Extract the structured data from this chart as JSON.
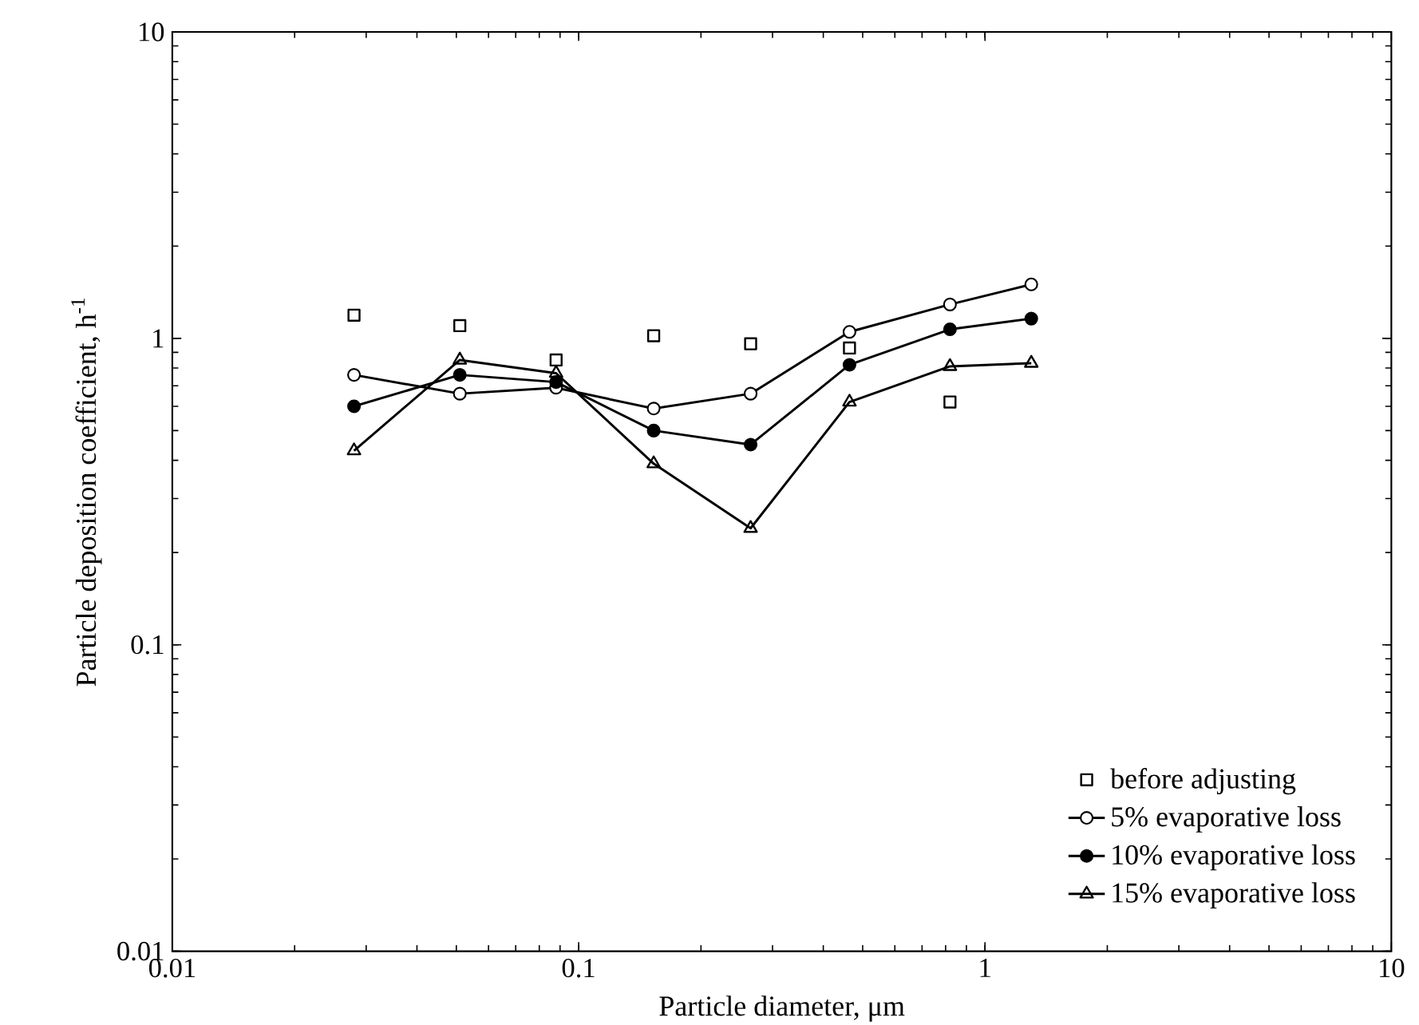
{
  "chart_data": {
    "type": "line",
    "xlabel": "Particle diameter, μm",
    "ylabel": "Particle deposition coefficient, h$^{-1}$",
    "log": "xy",
    "xlim": [
      0.01,
      10
    ],
    "ylim": [
      0.01,
      10
    ],
    "xticks": [
      0.01,
      0.1,
      1,
      10
    ],
    "yticks": [
      0.01,
      0.1,
      1,
      10
    ],
    "grid": false,
    "legend": "bottom right",
    "line_style": "solid",
    "x": [
      0.028,
      0.051,
      0.088,
      0.153,
      0.265,
      0.464,
      0.82,
      1.3
    ],
    "series": [
      {
        "name": "before adjusting",
        "type": "scatter",
        "marker": "square",
        "color": "#000000",
        "values": [
          1.19,
          1.1,
          0.85,
          1.02,
          0.96,
          0.93,
          0.62,
          null
        ]
      },
      {
        "name": "5% evaporative loss",
        "marker": "circle",
        "color": "#000000",
        "values": [
          0.76,
          0.66,
          0.69,
          0.59,
          0.66,
          1.05,
          1.29,
          1.5
        ]
      },
      {
        "name": "10% evaporative loss",
        "marker": "filled circle",
        "color": "#000000",
        "values": [
          0.6,
          0.76,
          0.72,
          0.5,
          0.45,
          0.82,
          1.07,
          1.16
        ]
      },
      {
        "name": "15% evaporative loss",
        "marker": "triangle",
        "color": "#000000",
        "values": [
          0.43,
          0.85,
          0.77,
          0.39,
          0.24,
          0.62,
          0.81,
          0.83
        ]
      }
    ]
  }
}
